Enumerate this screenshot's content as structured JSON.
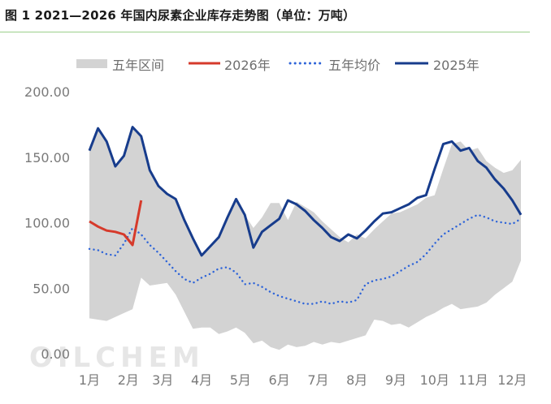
{
  "title": "图 1 2021—2026 年国内尿素企业库存走势图（单位：万吨）",
  "watermark": "OILCHEM",
  "chart_data": {
    "type": "line",
    "title": "图 1 2021—2026 年国内尿素企业库存走势图（单位：万吨）",
    "unit": "万吨",
    "ylim": [
      0,
      200
    ],
    "yticks": [
      0,
      50,
      100,
      150,
      200
    ],
    "ytick_labels": [
      "0.00",
      "50.00",
      "100.00",
      "150.00",
      "200.00"
    ],
    "xlim": [
      0,
      50
    ],
    "x_ticks": [
      {
        "x": 0,
        "label": "1月"
      },
      {
        "x": 4.5,
        "label": "2月"
      },
      {
        "x": 8.5,
        "label": "3月"
      },
      {
        "x": 13,
        "label": "4月"
      },
      {
        "x": 17.5,
        "label": "5月"
      },
      {
        "x": 22,
        "label": "6月"
      },
      {
        "x": 26.5,
        "label": "7月"
      },
      {
        "x": 31,
        "label": "8月"
      },
      {
        "x": 35.5,
        "label": "9月"
      },
      {
        "x": 40,
        "label": "10月"
      },
      {
        "x": 44.5,
        "label": "11月"
      },
      {
        "x": 49,
        "label": "12月"
      }
    ],
    "legend": [
      {
        "key": "range",
        "label": "五年区间",
        "color": "#d3d3d3",
        "style": "area"
      },
      {
        "key": "y2026",
        "label": "2026年",
        "color": "#d63a2b",
        "style": "solid"
      },
      {
        "key": "avg",
        "label": "五年均价",
        "color": "#2e64d8",
        "style": "dotted"
      },
      {
        "key": "y2025",
        "label": "2025年",
        "color": "#173c8c",
        "style": "solid"
      }
    ],
    "range_upper": {
      "x": [
        0,
        1,
        2,
        3,
        4,
        5,
        6,
        7,
        8,
        9,
        10,
        11,
        12,
        13,
        14,
        15,
        16,
        17,
        18,
        19,
        20,
        21,
        22,
        23,
        24,
        25,
        26,
        27,
        28,
        29,
        30,
        31,
        32,
        33,
        34,
        35,
        36,
        37,
        38,
        39,
        40,
        41,
        42,
        43,
        44,
        45,
        46,
        47,
        48,
        49,
        50
      ],
      "values": [
        155,
        172,
        162,
        143,
        151,
        173,
        166,
        140,
        128,
        122,
        118,
        102,
        88,
        75,
        82,
        89,
        104,
        118,
        106,
        96,
        104,
        115,
        115,
        102,
        116,
        112,
        108,
        101,
        95,
        89,
        85,
        91,
        88,
        95,
        101,
        107,
        108,
        111,
        114,
        119,
        121,
        141,
        160,
        162,
        155,
        157,
        147,
        142,
        138,
        140,
        148
      ]
    },
    "range_lower": {
      "x": [
        0,
        1,
        2,
        3,
        4,
        5,
        6,
        7,
        8,
        9,
        10,
        11,
        12,
        13,
        14,
        15,
        16,
        17,
        18,
        19,
        20,
        21,
        22,
        23,
        24,
        25,
        26,
        27,
        28,
        29,
        30,
        31,
        32,
        33,
        34,
        35,
        36,
        37,
        38,
        39,
        40,
        41,
        42,
        43,
        44,
        45,
        46,
        47,
        48,
        49,
        50
      ],
      "values": [
        27,
        26,
        25,
        28,
        31,
        34,
        58,
        52,
        53,
        54,
        45,
        32,
        19,
        20,
        20,
        15,
        17,
        20,
        16,
        8,
        10,
        5,
        3,
        7,
        5,
        6,
        9,
        7,
        9,
        8,
        10,
        12,
        14,
        26,
        25,
        22,
        23,
        20,
        24,
        28,
        31,
        35,
        38,
        34,
        35,
        36,
        39,
        45,
        50,
        55,
        71
      ]
    },
    "series": [
      {
        "name": "2026年",
        "x": [
          0,
          1,
          2,
          3,
          4,
          5,
          6
        ],
        "values": [
          101,
          97,
          94,
          93,
          91,
          83,
          117
        ]
      },
      {
        "name": "五年均价",
        "x": [
          0,
          1,
          2,
          3,
          4,
          5,
          6,
          7,
          8,
          9,
          10,
          11,
          12,
          13,
          14,
          15,
          16,
          17,
          18,
          19,
          20,
          21,
          22,
          23,
          24,
          25,
          26,
          27,
          28,
          29,
          30,
          31,
          32,
          33,
          34,
          35,
          36,
          37,
          38,
          39,
          40,
          41,
          42,
          43,
          44,
          45,
          46,
          47,
          48,
          49,
          50
        ],
        "values": [
          80,
          79,
          76,
          75,
          84,
          96,
          91,
          83,
          77,
          70,
          63,
          57,
          54,
          58,
          61,
          65,
          66,
          62,
          53,
          54,
          51,
          47,
          44,
          42,
          40,
          38,
          38,
          40,
          38,
          40,
          39,
          41,
          53,
          56,
          57,
          59,
          63,
          67,
          70,
          76,
          84,
          91,
          95,
          99,
          103,
          106,
          104,
          101,
          100,
          99,
          103
        ]
      },
      {
        "name": "2025年",
        "x": [
          0,
          1,
          2,
          3,
          4,
          5,
          6,
          7,
          8,
          9,
          10,
          11,
          12,
          13,
          14,
          15,
          16,
          17,
          18,
          19,
          20,
          21,
          22,
          23,
          24,
          25,
          26,
          27,
          28,
          29,
          30,
          31,
          32,
          33,
          34,
          35,
          36,
          37,
          38,
          39,
          40,
          41,
          42,
          43,
          44,
          45,
          46,
          47,
          48,
          49,
          50
        ],
        "values": [
          155,
          172,
          162,
          143,
          151,
          173,
          166,
          140,
          128,
          122,
          118,
          102,
          88,
          75,
          82,
          89,
          104,
          118,
          106,
          81,
          93,
          98,
          103,
          117,
          114,
          109,
          102,
          96,
          89,
          86,
          91,
          88,
          94,
          101,
          107,
          108,
          111,
          114,
          119,
          121,
          141,
          160,
          162,
          155,
          157,
          147,
          142,
          133,
          126,
          117,
          106
        ]
      }
    ]
  }
}
